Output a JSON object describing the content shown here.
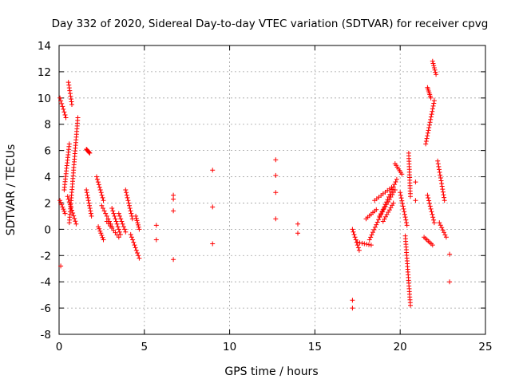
{
  "colors": {
    "series": "#ff0000",
    "grid": "#a0a0a0",
    "frame": "#000000"
  },
  "chart_data": {
    "type": "scatter",
    "title": "Day 332 of 2020, Sidereal Day-to-day VTEC variation (SDTVAR) for receiver cpvg",
    "xlabel": "GPS time / hours",
    "ylabel": "SDTVAR / TECUs",
    "xlim": [
      0,
      25
    ],
    "ylim": [
      -8,
      14
    ],
    "xticks": [
      0,
      5,
      10,
      15,
      20,
      25
    ],
    "yticks": [
      -8,
      -6,
      -4,
      -2,
      0,
      2,
      4,
      6,
      8,
      10,
      12,
      14
    ],
    "grid": true,
    "marker": "+",
    "segments": [
      {
        "x": [
          0.05,
          0.4
        ],
        "y": [
          10.0,
          8.5
        ]
      },
      {
        "x": [
          0.05,
          0.35
        ],
        "y": [
          2.2,
          1.2
        ]
      },
      {
        "x": [
          0.3,
          0.6
        ],
        "y": [
          3.0,
          6.5
        ]
      },
      {
        "x": [
          0.55,
          0.75
        ],
        "y": [
          11.2,
          9.5
        ]
      },
      {
        "x": [
          0.6,
          1.1
        ],
        "y": [
          0.5,
          8.5
        ]
      },
      {
        "x": [
          0.5,
          1.0
        ],
        "y": [
          2.5,
          0.4
        ]
      },
      {
        "x": [
          1.6,
          1.8
        ],
        "y": [
          6.1,
          5.8
        ]
      },
      {
        "x": [
          1.6,
          1.9
        ],
        "y": [
          3.0,
          1.0
        ]
      },
      {
        "x": [
          2.2,
          2.6
        ],
        "y": [
          4.0,
          2.2
        ]
      },
      {
        "x": [
          2.3,
          2.6
        ],
        "y": [
          0.2,
          -0.8
        ]
      },
      {
        "x": [
          2.5,
          3.1
        ],
        "y": [
          1.8,
          0.2
        ]
      },
      {
        "x": [
          2.8,
          3.5
        ],
        "y": [
          0.6,
          -0.6
        ]
      },
      {
        "x": [
          3.1,
          3.6
        ],
        "y": [
          1.6,
          -0.4
        ]
      },
      {
        "x": [
          3.5,
          3.9
        ],
        "y": [
          1.2,
          -0.2
        ]
      },
      {
        "x": [
          3.9,
          4.3
        ],
        "y": [
          3.0,
          0.8
        ]
      },
      {
        "x": [
          4.2,
          4.7
        ],
        "y": [
          -0.4,
          -2.2
        ]
      },
      {
        "x": [
          4.5,
          4.7
        ],
        "y": [
          1.0,
          0.0
        ]
      },
      {
        "x": [
          17.2,
          17.6
        ],
        "y": [
          0.0,
          -1.6
        ]
      },
      {
        "x": [
          17.5,
          18.3
        ],
        "y": [
          -1.0,
          -1.2
        ]
      },
      {
        "x": [
          18.0,
          18.6
        ],
        "y": [
          0.8,
          1.5
        ]
      },
      {
        "x": [
          18.2,
          19.8
        ],
        "y": [
          -0.8,
          3.8
        ]
      },
      {
        "x": [
          18.5,
          19.5
        ],
        "y": [
          2.2,
          3.2
        ]
      },
      {
        "x": [
          18.8,
          19.7
        ],
        "y": [
          1.0,
          3.0
        ]
      },
      {
        "x": [
          19.0,
          19.6
        ],
        "y": [
          0.6,
          2.0
        ]
      },
      {
        "x": [
          19.7,
          20.1
        ],
        "y": [
          5.0,
          4.2
        ]
      },
      {
        "x": [
          20.0,
          20.4
        ],
        "y": [
          2.8,
          0.3
        ]
      },
      {
        "x": [
          20.3,
          20.6
        ],
        "y": [
          -0.5,
          -5.8
        ]
      },
      {
        "x": [
          20.5,
          20.6
        ],
        "y": [
          5.8,
          2.5
        ]
      },
      {
        "x": [
          21.5,
          22.0
        ],
        "y": [
          6.5,
          9.8
        ]
      },
      {
        "x": [
          21.6,
          21.8
        ],
        "y": [
          10.8,
          10.0
        ]
      },
      {
        "x": [
          21.9,
          22.1
        ],
        "y": [
          12.8,
          11.8
        ]
      },
      {
        "x": [
          21.6,
          22.0
        ],
        "y": [
          2.6,
          0.5
        ]
      },
      {
        "x": [
          21.4,
          21.9
        ],
        "y": [
          -0.6,
          -1.2
        ]
      },
      {
        "x": [
          22.2,
          22.6
        ],
        "y": [
          5.2,
          2.2
        ]
      },
      {
        "x": [
          22.3,
          22.7
        ],
        "y": [
          0.5,
          -0.6
        ]
      }
    ],
    "scatter_points": {
      "x": [
        5.7,
        5.7,
        6.7,
        6.7,
        6.7,
        6.7,
        9.0,
        9.0,
        9.0,
        12.7,
        12.7,
        12.7,
        12.7,
        14.0,
        14.0,
        17.2,
        17.2,
        20.9,
        20.9,
        22.9,
        22.9,
        0.1
      ],
      "y": [
        0.3,
        -0.8,
        2.6,
        1.4,
        -2.3,
        2.3,
        4.5,
        1.7,
        -1.1,
        5.3,
        4.1,
        2.8,
        0.8,
        0.4,
        -0.3,
        -5.4,
        -6.0,
        3.6,
        2.2,
        -4.0,
        -1.9,
        -2.8
      ]
    }
  }
}
